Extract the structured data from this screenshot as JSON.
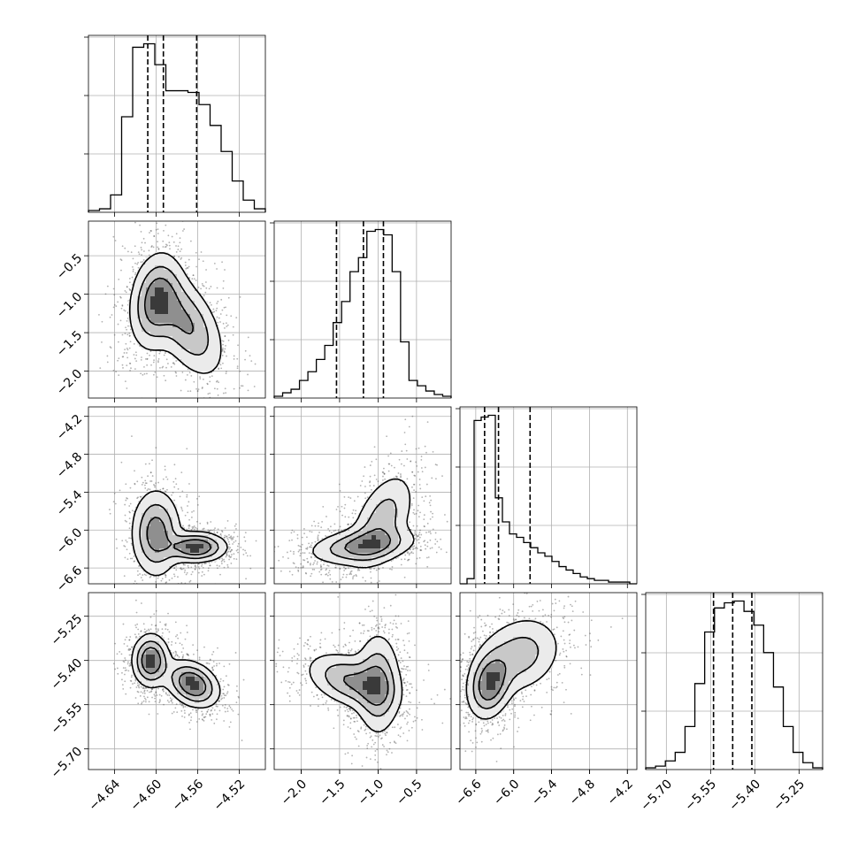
{
  "chart_data": {
    "type": "corner",
    "parameters": [
      {
        "range": [
          -4.665,
          -4.495
        ],
        "ticks": [
          -4.64,
          -4.6,
          -4.56,
          -4.52
        ],
        "tick_labels": [
          "−4.64",
          "−4.60",
          "−4.56",
          "−4.52"
        ],
        "quantiles": [
          -4.608,
          -4.593,
          -4.561
        ],
        "hist": [
          0.01,
          0.02,
          0.1,
          0.55,
          0.95,
          0.97,
          0.85,
          0.7,
          0.7,
          0.69,
          0.62,
          0.5,
          0.35,
          0.18,
          0.07,
          0.02
        ]
      },
      {
        "range": [
          -2.35,
          -0.05
        ],
        "ticks": [
          -2.0,
          -1.5,
          -1.0,
          -0.5
        ],
        "tick_labels": [
          "−2.0",
          "−1.5",
          "−1.0",
          "−0.5"
        ],
        "quantiles": [
          -1.54,
          -1.19,
          -0.93
        ],
        "hist": [
          0.01,
          0.03,
          0.05,
          0.1,
          0.15,
          0.22,
          0.3,
          0.43,
          0.55,
          0.72,
          0.8,
          0.95,
          0.96,
          0.93,
          0.72,
          0.32,
          0.1,
          0.07,
          0.04,
          0.02,
          0.01
        ]
      },
      {
        "range": [
          -6.85,
          -4.05
        ],
        "ticks": [
          -6.6,
          -6.0,
          -5.4,
          -4.8,
          -4.2
        ],
        "tick_labels": [
          "−6.6",
          "−6.0",
          "−5.4",
          "−4.8",
          "−4.2"
        ],
        "quantiles": [
          -6.46,
          -6.24,
          -5.74
        ],
        "hist": [
          0.0,
          0.03,
          0.95,
          0.97,
          0.98,
          0.5,
          0.36,
          0.29,
          0.27,
          0.24,
          0.21,
          0.18,
          0.16,
          0.13,
          0.1,
          0.08,
          0.06,
          0.04,
          0.03,
          0.02,
          0.02,
          0.01,
          0.01,
          0.01,
          0.0
        ]
      },
      {
        "range": [
          -5.77,
          -5.17
        ],
        "ticks": [
          -5.7,
          -5.55,
          -5.4,
          -5.25
        ],
        "tick_labels": [
          "−5.70",
          "−5.55",
          "−5.40",
          "−5.25"
        ],
        "quantiles": [
          -5.54,
          -5.475,
          -5.41
        ],
        "hist": [
          0.01,
          0.02,
          0.05,
          0.1,
          0.25,
          0.5,
          0.8,
          0.94,
          0.97,
          0.98,
          0.92,
          0.84,
          0.68,
          0.48,
          0.25,
          0.1,
          0.04,
          0.01
        ]
      }
    ],
    "pairs": [
      {
        "row": 1,
        "col": 0,
        "blobs": [
          {
            "cx": -4.6,
            "cy": -1.1,
            "sx": 0.013,
            "sy": 0.32,
            "rho": 0.2,
            "w": 1.0
          },
          {
            "cx": -4.57,
            "cy": -1.4,
            "sx": 0.018,
            "sy": 0.35,
            "rho": -0.5,
            "w": 0.8
          }
        ]
      },
      {
        "row": 2,
        "col": 0,
        "blobs": [
          {
            "cx": -4.6,
            "cy": -6.05,
            "sx": 0.012,
            "sy": 0.35,
            "rho": 0.0,
            "w": 0.8
          },
          {
            "cx": -4.562,
            "cy": -6.27,
            "sx": 0.015,
            "sy": 0.12,
            "rho": 0.0,
            "w": 1.0
          }
        ]
      },
      {
        "row": 2,
        "col": 1,
        "blobs": [
          {
            "cx": -1.2,
            "cy": -6.25,
            "sx": 0.35,
            "sy": 0.15,
            "rho": 0.3,
            "w": 1.0
          },
          {
            "cx": -0.95,
            "cy": -5.85,
            "sx": 0.22,
            "sy": 0.4,
            "rho": 0.5,
            "w": 0.7
          }
        ]
      },
      {
        "row": 3,
        "col": 0,
        "blobs": [
          {
            "cx": -4.605,
            "cy": -5.4,
            "sx": 0.009,
            "sy": 0.045,
            "rho": 0.0,
            "w": 1.0
          },
          {
            "cx": -4.565,
            "cy": -5.48,
            "sx": 0.013,
            "sy": 0.04,
            "rho": -0.3,
            "w": 1.0
          }
        ]
      },
      {
        "row": 3,
        "col": 1,
        "blobs": [
          {
            "cx": -1.35,
            "cy": -5.47,
            "sx": 0.3,
            "sy": 0.05,
            "rho": -0.4,
            "w": 0.9
          },
          {
            "cx": -1.0,
            "cy": -5.48,
            "sx": 0.15,
            "sy": 0.09,
            "rho": 0.0,
            "w": 0.9
          }
        ]
      },
      {
        "row": 3,
        "col": 2,
        "blobs": [
          {
            "cx": -6.38,
            "cy": -5.48,
            "sx": 0.18,
            "sy": 0.06,
            "rho": 0.2,
            "w": 1.0
          },
          {
            "cx": -5.9,
            "cy": -5.38,
            "sx": 0.35,
            "sy": 0.07,
            "rho": 0.2,
            "w": 0.55
          }
        ]
      }
    ]
  }
}
